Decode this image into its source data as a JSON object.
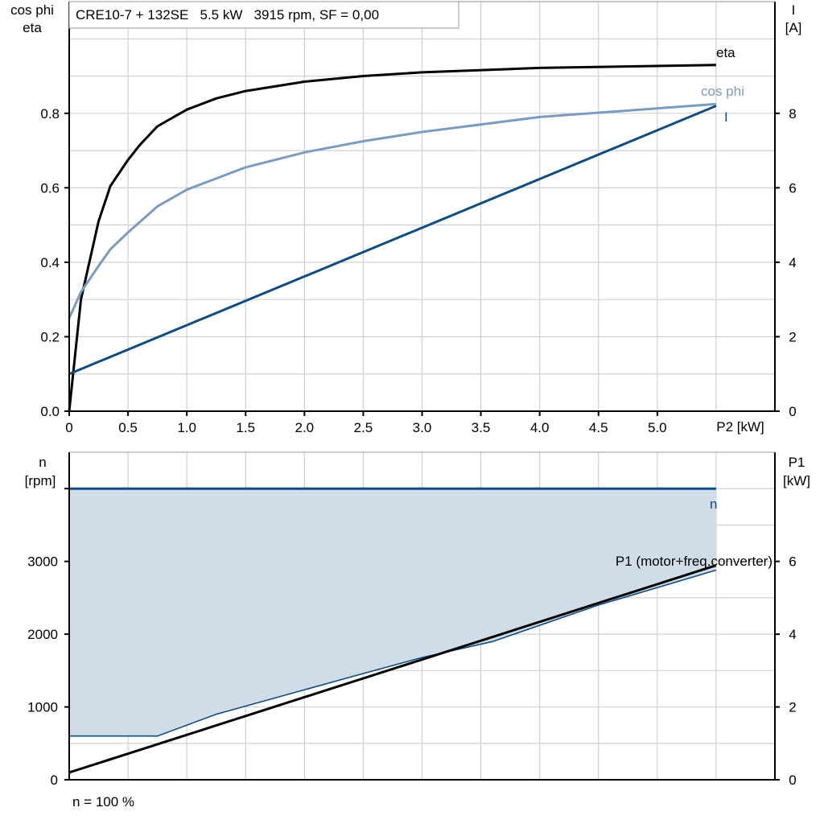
{
  "chart_data": [
    {
      "type": "line",
      "title": "CRE10-7 + 132SE   5.5 kW   3915 rpm, SF = 0,00",
      "xlabel": "P2 [kW]",
      "ylabel_left": [
        "cos phi",
        "eta"
      ],
      "ylabel_right": [
        "I",
        "[A]"
      ],
      "xlim": [
        0,
        6
      ],
      "ylim_left": [
        0,
        1.1
      ],
      "ylim_right": [
        0,
        11
      ],
      "x_ticks": [
        "0",
        "0.5",
        "1.0",
        "1.5",
        "2.0",
        "2.5",
        "3.0",
        "3.5",
        "4.0",
        "4.5",
        "5.0"
      ],
      "y_ticks_left": [
        "0.0",
        "0.2",
        "0.4",
        "0.6",
        "0.8"
      ],
      "y_ticks_right": [
        "0",
        "2",
        "4",
        "6",
        "8"
      ],
      "grid": true,
      "series": [
        {
          "name": "eta",
          "axis": "left",
          "color": "#000000",
          "x": [
            0,
            0.1,
            0.25,
            0.35,
            0.5,
            0.6,
            0.75,
            1.0,
            1.25,
            1.5,
            2.0,
            2.5,
            3.0,
            4.0,
            5.5
          ],
          "y": [
            0,
            0.3,
            0.51,
            0.605,
            0.675,
            0.715,
            0.765,
            0.81,
            0.84,
            0.86,
            0.885,
            0.9,
            0.91,
            0.922,
            0.93
          ]
        },
        {
          "name": "cos phi",
          "axis": "left",
          "color": "#7a9cc0",
          "x": [
            0,
            0.1,
            0.25,
            0.35,
            0.5,
            0.75,
            1.0,
            1.5,
            2.0,
            2.5,
            3.0,
            4.0,
            5.5
          ],
          "y": [
            0.25,
            0.32,
            0.39,
            0.435,
            0.48,
            0.55,
            0.595,
            0.655,
            0.695,
            0.725,
            0.75,
            0.79,
            0.825
          ]
        },
        {
          "name": "I",
          "axis": "right",
          "color": "#0f4c81",
          "x": [
            0,
            5.5
          ],
          "y": [
            1.0,
            8.2
          ]
        }
      ]
    },
    {
      "type": "area",
      "xlim": [
        0,
        6
      ],
      "ylabel_left": [
        "n",
        "[rpm]"
      ],
      "ylabel_right": [
        "P1",
        "[kW]"
      ],
      "ylim_left": [
        0,
        4500
      ],
      "ylim_right": [
        0,
        9
      ],
      "y_ticks_left": [
        "0",
        "1000",
        "2000",
        "3000"
      ],
      "y_ticks_right": [
        "0",
        "2",
        "4",
        "6"
      ],
      "footer": "n = 100 %",
      "grid": true,
      "n_max": {
        "name": "n",
        "color": "#0f4c81",
        "x": [
          0,
          5.5
        ],
        "y": [
          4000,
          4000
        ]
      },
      "n_min": {
        "color": "#0f4c81",
        "x": [
          0,
          0.75,
          1.25,
          2.5,
          3.0,
          3.6,
          4.5,
          5.5
        ],
        "y": [
          600,
          600,
          900,
          1460,
          1680,
          1900,
          2400,
          2880
        ]
      },
      "fill_color": "#d0dce8",
      "p1": {
        "name": "P1 (motor+freq.converter)",
        "axis": "right",
        "color": "#000000",
        "x": [
          0,
          5.5
        ],
        "y": [
          0.2,
          5.89
        ]
      }
    }
  ]
}
